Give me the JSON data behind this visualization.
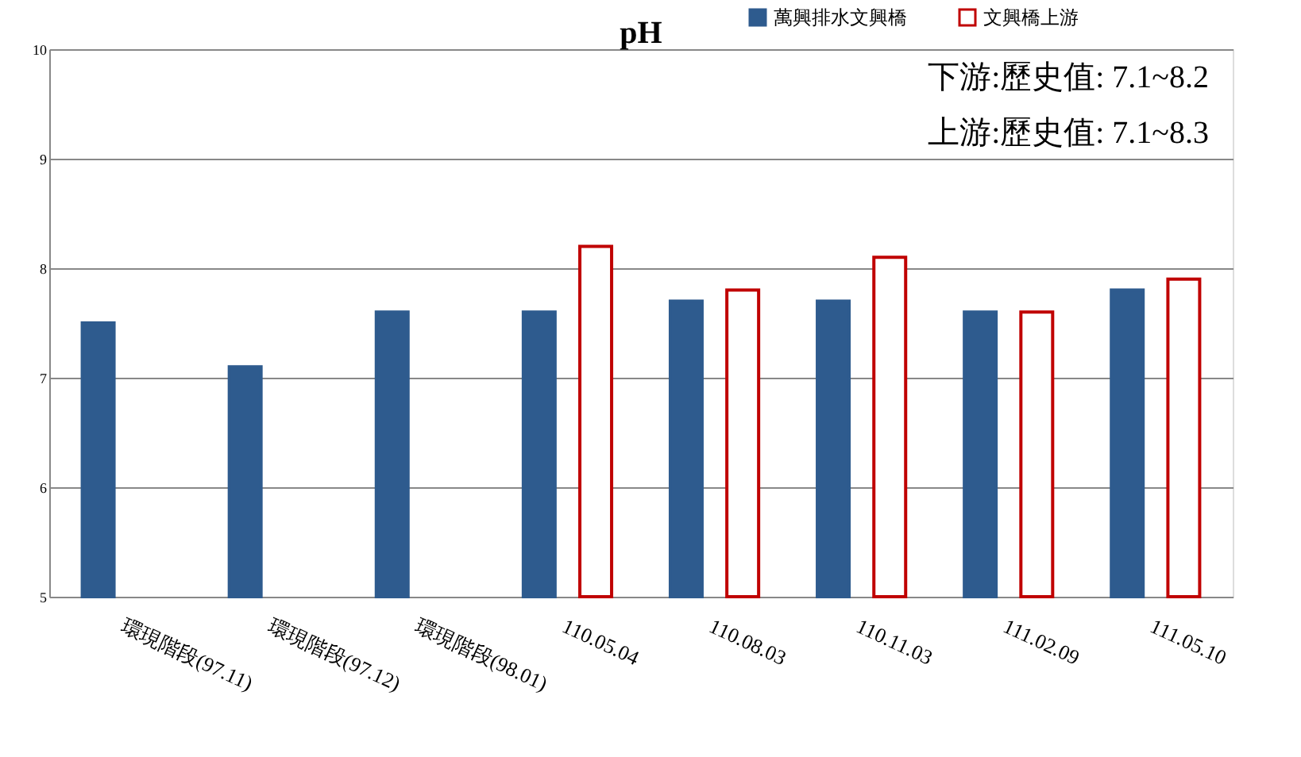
{
  "chart_data": {
    "type": "bar",
    "title": "pH",
    "categories": [
      "環現階段(97.11)",
      "環現階段(97.12)",
      "環現階段(98.01)",
      "110.05.04",
      "110.08.03",
      "110.11.03",
      "111.02.09",
      "111.05.10"
    ],
    "series": [
      {
        "name": "萬興排水文興橋",
        "color": "#2e5b8e",
        "values": [
          7.5,
          7.1,
          7.6,
          7.6,
          7.7,
          7.7,
          7.6,
          7.8
        ]
      },
      {
        "name": "文興橋上游",
        "color": "#c00000",
        "values": [
          null,
          null,
          null,
          8.2,
          7.8,
          8.1,
          7.6,
          7.9
        ]
      }
    ],
    "ylim": [
      5,
      10
    ],
    "yticks": [
      5,
      6,
      7,
      8,
      9,
      10
    ],
    "grid": "y",
    "legend": "top right",
    "annotations": [
      "下游:歷史值: 7.1~8.2",
      "上游:歷史值: 7.1~8.3"
    ]
  }
}
